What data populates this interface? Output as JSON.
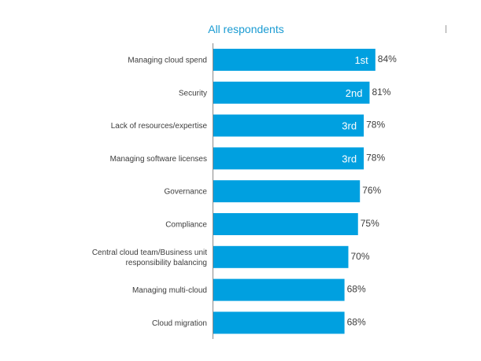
{
  "chart_data": {
    "type": "bar",
    "orientation": "horizontal",
    "title": "All respondents",
    "xlabel": "",
    "ylabel": "",
    "xlim": [
      0,
      100
    ],
    "grid": false,
    "bar_color": "#00a0e0",
    "categories": [
      [
        "Managing cloud spend"
      ],
      [
        "Security"
      ],
      [
        "Lack of resources/expertise"
      ],
      [
        "Managing software licenses"
      ],
      [
        "Governance"
      ],
      [
        "Compliance"
      ],
      [
        "Central cloud team/Business unit",
        "responsibility balancing"
      ],
      [
        "Managing multi-cloud"
      ],
      [
        "Cloud migration"
      ]
    ],
    "values": [
      84,
      81,
      78,
      78,
      76,
      75,
      70,
      68,
      68
    ],
    "value_labels": [
      "84%",
      "81%",
      "78%",
      "78%",
      "76%",
      "75%",
      "70%",
      "68%",
      "68%"
    ],
    "rank_labels": [
      "1st",
      "2nd",
      "3rd",
      "3rd",
      "",
      "",
      "",
      "",
      ""
    ]
  }
}
